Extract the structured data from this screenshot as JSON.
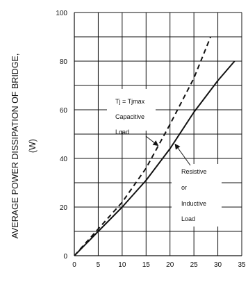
{
  "chart_data": {
    "type": "line",
    "title": "",
    "xlabel": "",
    "ylabel": [
      "AVERAGE POWER DISSIPATION OF BRIDGE,",
      "(W)"
    ],
    "xlim": [
      0,
      35
    ],
    "ylim": [
      0,
      100
    ],
    "x_ticks": [
      0,
      5,
      10,
      15,
      20,
      25,
      30,
      35
    ],
    "y_ticks": [
      0,
      20,
      40,
      60,
      80,
      100
    ],
    "grid": true,
    "legend": "none",
    "series": [
      {
        "key": "capacitive",
        "style": "dashed",
        "color": "#111111",
        "points": [
          [
            0,
            0
          ],
          [
            5,
            11
          ],
          [
            10,
            22
          ],
          [
            15,
            36
          ],
          [
            20,
            54
          ],
          [
            25,
            73
          ],
          [
            28.5,
            90
          ]
        ]
      },
      {
        "key": "resistive",
        "style": "solid",
        "color": "#111111",
        "points": [
          [
            0,
            0
          ],
          [
            5,
            10
          ],
          [
            10,
            20
          ],
          [
            15,
            31
          ],
          [
            20,
            44
          ],
          [
            25,
            59
          ],
          [
            30,
            72
          ],
          [
            33.5,
            80
          ]
        ]
      }
    ],
    "annotations": {
      "capacitive": {
        "condition": "Tj = Tjmax",
        "lines": [
          "Capacitive",
          "Load"
        ],
        "arrow_to": [
          17.5,
          43
        ]
      },
      "resistive": {
        "lines": [
          "Resistive",
          "or",
          "Inductive",
          "Load"
        ],
        "arrow_to": [
          20.5,
          47
        ]
      }
    }
  }
}
